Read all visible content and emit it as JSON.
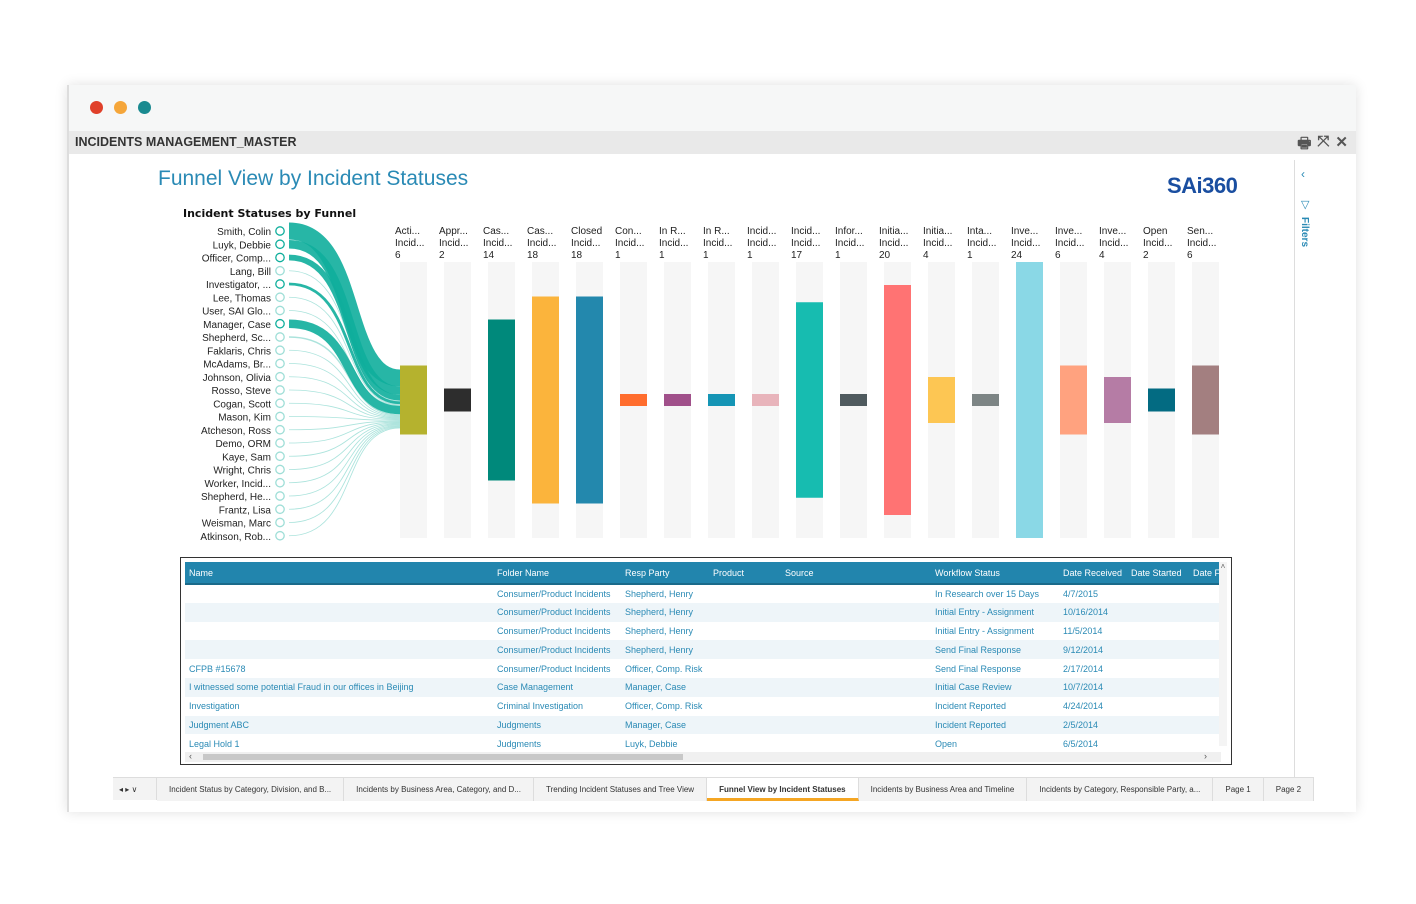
{
  "window": {
    "title": "INCIDENTS MANAGEMENT_MASTER",
    "dots": [
      "#e0402a",
      "#f5a63a",
      "#1a8a90"
    ],
    "icons": [
      "print-icon",
      "collapse-icon",
      "close-icon"
    ]
  },
  "page": {
    "title": "Funnel View by Incident Statuses",
    "logo": "SAi360"
  },
  "filters": {
    "label": "Filters"
  },
  "chart_data": {
    "type": "bar",
    "title": "Incident Statuses by Funnel",
    "people": [
      {
        "name": "Smith, Colin",
        "flow": 6
      },
      {
        "name": "Luyk, Debbie",
        "flow": 3
      },
      {
        "name": "Officer, Comp...",
        "flow": 2
      },
      {
        "name": "Lang, Bill",
        "flow": 0.3
      },
      {
        "name": "Investigator, ...",
        "flow": 1
      },
      {
        "name": "Lee, Thomas",
        "flow": 0.3
      },
      {
        "name": "User, SAI Glo...",
        "flow": 0.2
      },
      {
        "name": "Manager, Case",
        "flow": 3
      },
      {
        "name": "Shepherd, Sc...",
        "flow": 0.5
      },
      {
        "name": "Faklaris, Chris",
        "flow": 0.3
      },
      {
        "name": "McAdams, Br...",
        "flow": 0.3
      },
      {
        "name": "Johnson, Olivia",
        "flow": 0.3
      },
      {
        "name": "Rosso, Steve",
        "flow": 0.3
      },
      {
        "name": "Cogan, Scott",
        "flow": 0.3
      },
      {
        "name": "Mason, Kim",
        "flow": 0.3
      },
      {
        "name": "Atcheson, Ross",
        "flow": 0.3
      },
      {
        "name": "Demo, ORM",
        "flow": 0.3
      },
      {
        "name": "Kaye, Sam",
        "flow": 0.3
      },
      {
        "name": "Wright, Chris",
        "flow": 0.3
      },
      {
        "name": "Worker, Incid...",
        "flow": 0.3
      },
      {
        "name": "Shepherd, He...",
        "flow": 0.3
      },
      {
        "name": "Frantz, Lisa",
        "flow": 0.3
      },
      {
        "name": "Weisman, Marc",
        "flow": 0.3
      },
      {
        "name": "Atkinson, Rob...",
        "flow": 0.3
      }
    ],
    "categories": [
      {
        "l1": "Acti...",
        "l2": "Incid...",
        "value": 6,
        "color": "#b5b22e"
      },
      {
        "l1": "Appr...",
        "l2": "Incid...",
        "value": 2,
        "color": "#2d2d2d"
      },
      {
        "l1": "Cas...",
        "l2": "Incid...",
        "value": 14,
        "color": "#00897b"
      },
      {
        "l1": "Cas...",
        "l2": "Incid...",
        "value": 18,
        "color": "#fbb43c"
      },
      {
        "l1": "Closed",
        "l2": "Incid...",
        "value": 18,
        "color": "#2388ad"
      },
      {
        "l1": "Con...",
        "l2": "Incid...",
        "value": 1,
        "color": "#ff6d2e"
      },
      {
        "l1": "In R...",
        "l2": "Incid...",
        "value": 1,
        "color": "#a0508a"
      },
      {
        "l1": "In R...",
        "l2": "Incid...",
        "value": 1,
        "color": "#1595b5"
      },
      {
        "l1": "Incid...",
        "l2": "Incid...",
        "value": 1,
        "color": "#e8b4bb"
      },
      {
        "l1": "Incid...",
        "l2": "Incid...",
        "value": 17,
        "color": "#17bcb0"
      },
      {
        "l1": "Infor...",
        "l2": "Incid...",
        "value": 1,
        "color": "#4f5a5e"
      },
      {
        "l1": "Initia...",
        "l2": "Incid...",
        "value": 20,
        "color": "#ff7373"
      },
      {
        "l1": "Initia...",
        "l2": "Incid...",
        "value": 4,
        "color": "#fdc653"
      },
      {
        "l1": "Inta...",
        "l2": "Incid...",
        "value": 1,
        "color": "#7d8585"
      },
      {
        "l1": "Inve...",
        "l2": "Incid...",
        "value": 24,
        "color": "#8ad8e6"
      },
      {
        "l1": "Inve...",
        "l2": "Incid...",
        "value": 6,
        "color": "#ffa27f"
      },
      {
        "l1": "Inve...",
        "l2": "Incid...",
        "value": 4,
        "color": "#b57ca5"
      },
      {
        "l1": "Open",
        "l2": "Incid...",
        "value": 2,
        "color": "#036b82"
      },
      {
        "l1": "Sen...",
        "l2": "Incid...",
        "value": 6,
        "color": "#a37f80"
      }
    ],
    "ylim": [
      0,
      24
    ],
    "flow_color": "#0fae9c"
  },
  "table": {
    "columns": [
      "Name",
      "Folder Name",
      "Resp Party",
      "Product",
      "Source",
      "Workflow Status",
      "Date Received",
      "Date Started",
      "Date F"
    ],
    "rows": [
      [
        "",
        "Consumer/Product Incidents",
        "Shepherd, Henry",
        "",
        "",
        "In Research over 15 Days",
        "4/7/2015",
        "",
        ""
      ],
      [
        "",
        "Consumer/Product Incidents",
        "Shepherd, Henry",
        "",
        "",
        "Initial Entry - Assignment",
        "10/16/2014",
        "",
        ""
      ],
      [
        "",
        "Consumer/Product Incidents",
        "Shepherd, Henry",
        "",
        "",
        "Initial Entry - Assignment",
        "11/5/2014",
        "",
        ""
      ],
      [
        "",
        "Consumer/Product Incidents",
        "Shepherd, Henry",
        "",
        "",
        "Send Final Response",
        "9/12/2014",
        "",
        ""
      ],
      [
        "CFPB #15678",
        "Consumer/Product Incidents",
        "Officer, Comp. Risk",
        "",
        "",
        "Send Final Response",
        "2/17/2014",
        "",
        ""
      ],
      [
        "I witnessed some potential Fraud in our offices in Beijing",
        "Case Management",
        "Manager, Case",
        "",
        "",
        "Initial Case Review",
        "10/7/2014",
        "",
        ""
      ],
      [
        "Investigation",
        "Criminal Investigation",
        "Officer, Comp. Risk",
        "",
        "",
        "Incident Reported",
        "4/24/2014",
        "",
        ""
      ],
      [
        "Judgment ABC",
        "Judgments",
        "Manager, Case",
        "",
        "",
        "Incident Reported",
        "2/5/2014",
        "",
        ""
      ],
      [
        "Legal Hold 1",
        "Judgments",
        "Luyk, Debbie",
        "",
        "",
        "Open",
        "6/5/2014",
        "",
        ""
      ]
    ]
  },
  "tabs": {
    "items": [
      "Incident Status by Category, Division, and B...",
      "Incidents by Business Area, Category, and D...",
      "Trending Incident Statuses and Tree View",
      "Funnel View by Incident Statuses",
      "Incidents by Business Area and Timeline",
      "Incidents by Category, Responsible Party, a...",
      "Page 1",
      "Page 2"
    ],
    "active": 3,
    "accent": "#f5a623"
  }
}
